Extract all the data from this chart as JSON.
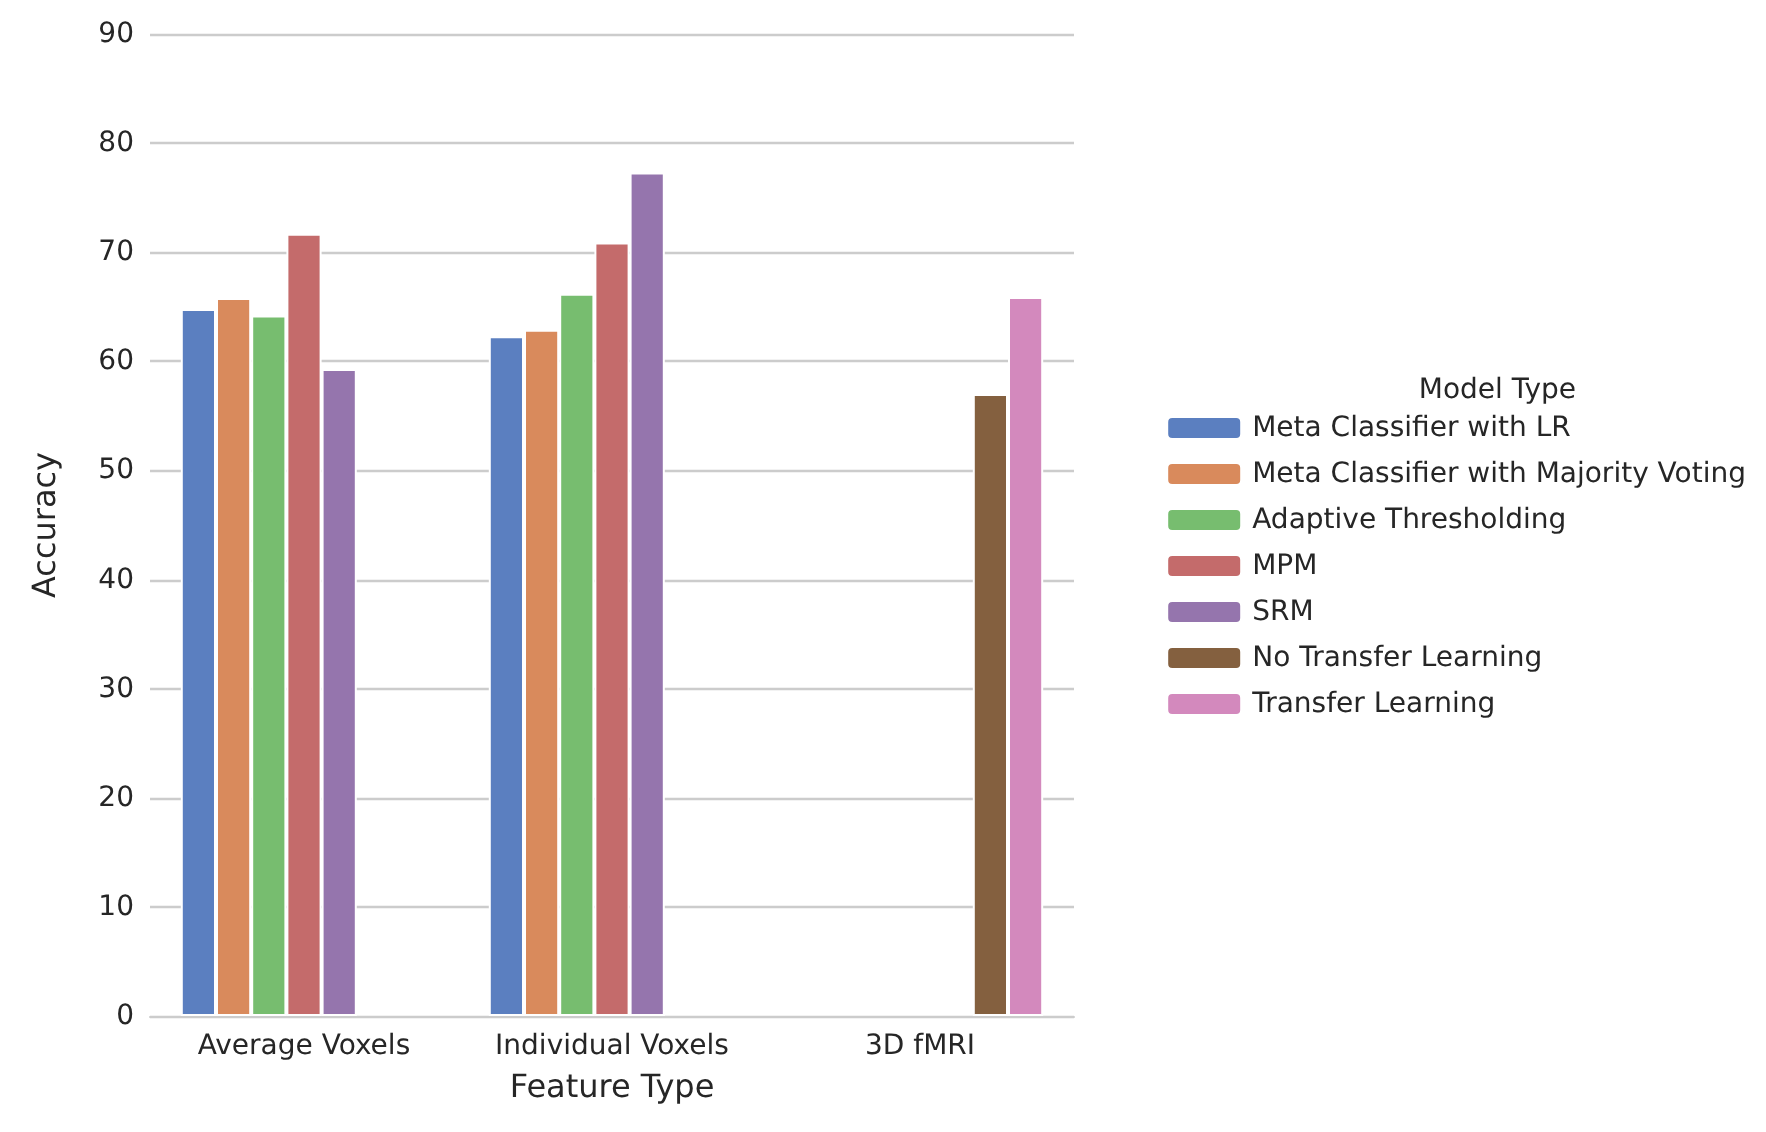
{
  "chart_data": {
    "type": "bar",
    "xlabel": "Feature Type",
    "ylabel": "Accuracy",
    "legend_title": "Model Type",
    "categories": [
      "Average Voxels",
      "Individual Voxels",
      "3D fMRI"
    ],
    "series": [
      {
        "name": "Meta Classifier with LR",
        "color": "#5b7fc0",
        "values": [
          64.8,
          62.3,
          null
        ]
      },
      {
        "name": "Meta Classifier with Majority Voting",
        "color": "#d98a5c",
        "values": [
          65.8,
          62.9,
          null
        ]
      },
      {
        "name": "Adaptive Thresholding",
        "color": "#77bd6f",
        "values": [
          64.2,
          66.2,
          null
        ]
      },
      {
        "name": "MPM",
        "color": "#c46b6b",
        "values": [
          71.7,
          70.9,
          null
        ]
      },
      {
        "name": "SRM",
        "color": "#9575ad",
        "values": [
          59.3,
          77.3,
          null
        ]
      },
      {
        "name": "No Transfer Learning",
        "color": "#84603f",
        "values": [
          null,
          null,
          57.0
        ]
      },
      {
        "name": "Transfer Learning",
        "color": "#d389bd",
        "values": [
          null,
          null,
          65.9
        ]
      }
    ],
    "ylim": [
      0,
      90
    ],
    "yticks": [
      0,
      10,
      20,
      30,
      40,
      50,
      60,
      70,
      80,
      90
    ],
    "grid": "y",
    "legend": "right"
  }
}
